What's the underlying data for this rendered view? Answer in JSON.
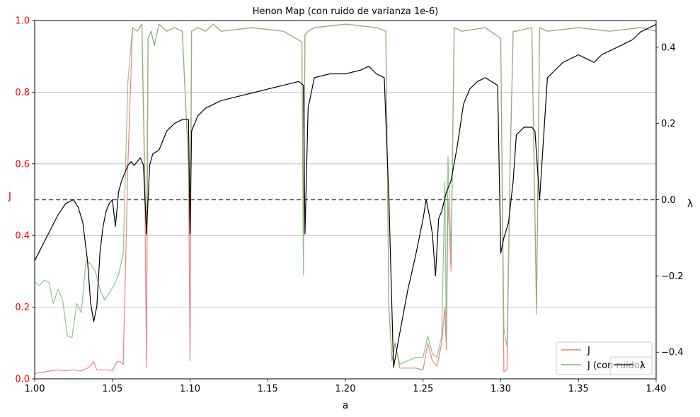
{
  "chart_data": {
    "type": "line",
    "title": "Henon Map (con ruido de varianza 1e-6)",
    "xlabel": "a",
    "ylabel_left": "J",
    "ylabel_right": "λ",
    "xlim": [
      1.0,
      1.4
    ],
    "ylim_left": [
      0.0,
      1.0
    ],
    "ylim_right": [
      -0.47,
      0.47
    ],
    "x_ticks": [
      "1.00",
      "1.05",
      "1.10",
      "1.15",
      "1.20",
      "1.25",
      "1.30",
      "1.35",
      "1.40"
    ],
    "y_ticks_left": [
      "0.0",
      "0.2",
      "0.4",
      "0.6",
      "0.8",
      "1.0"
    ],
    "y_ticks_right": [
      "−0.4",
      "−0.2",
      "0.0",
      "0.2",
      "0.4"
    ],
    "grid": "horizontal",
    "zero_line_right": 0.0,
    "legend_placement": "bottom-right",
    "colors": {
      "J": "#f08080",
      "J_noise": "#77bb77",
      "lambda": "#000000",
      "left_axis_labels": "#ff0000"
    },
    "series": [
      {
        "name": "J",
        "axis": "left",
        "x": [
          1.0,
          1.005,
          1.01,
          1.015,
          1.02,
          1.025,
          1.03,
          1.035,
          1.038,
          1.04,
          1.045,
          1.05,
          1.053,
          1.055,
          1.057,
          1.06,
          1.063,
          1.066,
          1.069,
          1.071,
          1.072,
          1.073,
          1.075,
          1.077,
          1.08,
          1.085,
          1.09,
          1.095,
          1.099,
          1.1,
          1.101,
          1.105,
          1.11,
          1.115,
          1.12,
          1.14,
          1.16,
          1.172,
          1.173,
          1.174,
          1.176,
          1.18,
          1.2,
          1.22,
          1.226,
          1.228,
          1.23,
          1.232,
          1.235,
          1.24,
          1.245,
          1.25,
          1.253,
          1.256,
          1.259,
          1.262,
          1.264,
          1.265,
          1.266,
          1.268,
          1.27,
          1.275,
          1.29,
          1.3,
          1.302,
          1.304,
          1.306,
          1.308,
          1.31,
          1.32,
          1.323,
          1.325,
          1.33,
          1.35,
          1.37,
          1.39,
          1.4
        ],
        "y": [
          0.015,
          0.018,
          0.022,
          0.025,
          0.022,
          0.025,
          0.022,
          0.032,
          0.048,
          0.025,
          0.025,
          0.023,
          0.048,
          0.048,
          0.04,
          0.6,
          0.98,
          0.97,
          0.99,
          0.5,
          0.03,
          0.95,
          0.97,
          0.93,
          0.99,
          0.97,
          0.98,
          0.97,
          0.6,
          0.05,
          0.97,
          0.98,
          0.97,
          0.99,
          0.97,
          0.98,
          0.97,
          0.94,
          0.4,
          0.96,
          0.97,
          0.98,
          0.99,
          0.98,
          0.97,
          0.2,
          0.05,
          0.1,
          0.03,
          0.03,
          0.03,
          0.025,
          0.1,
          0.05,
          0.035,
          0.1,
          0.2,
          0.08,
          0.5,
          0.3,
          0.98,
          0.97,
          0.98,
          0.95,
          0.02,
          0.025,
          0.6,
          0.97,
          0.97,
          0.98,
          0.2,
          0.98,
          0.97,
          0.98,
          0.97,
          0.98,
          0.97
        ]
      },
      {
        "name": "J (con ruido)",
        "axis": "left",
        "x": [
          1.0,
          1.003,
          1.006,
          1.009,
          1.012,
          1.015,
          1.018,
          1.021,
          1.024,
          1.027,
          1.03,
          1.033,
          1.036,
          1.039,
          1.042,
          1.045,
          1.048,
          1.051,
          1.054,
          1.057,
          1.06,
          1.063,
          1.066,
          1.069,
          1.071,
          1.072,
          1.073,
          1.075,
          1.077,
          1.08,
          1.085,
          1.09,
          1.095,
          1.099,
          1.1,
          1.101,
          1.105,
          1.11,
          1.115,
          1.12,
          1.14,
          1.16,
          1.172,
          1.173,
          1.174,
          1.176,
          1.18,
          1.2,
          1.22,
          1.226,
          1.228,
          1.23,
          1.232,
          1.235,
          1.24,
          1.245,
          1.25,
          1.253,
          1.256,
          1.259,
          1.262,
          1.264,
          1.265,
          1.266,
          1.268,
          1.27,
          1.275,
          1.29,
          1.3,
          1.302,
          1.304,
          1.306,
          1.308,
          1.31,
          1.32,
          1.323,
          1.325,
          1.33,
          1.35,
          1.37,
          1.39,
          1.4
        ],
        "y": [
          0.27,
          0.26,
          0.275,
          0.27,
          0.21,
          0.25,
          0.22,
          0.12,
          0.115,
          0.21,
          0.185,
          0.33,
          0.32,
          0.3,
          0.25,
          0.22,
          0.24,
          0.26,
          0.29,
          0.35,
          0.83,
          0.98,
          0.97,
          0.99,
          0.55,
          0.4,
          0.95,
          0.97,
          0.93,
          0.99,
          0.97,
          0.98,
          0.97,
          0.6,
          0.42,
          0.97,
          0.98,
          0.97,
          0.99,
          0.97,
          0.98,
          0.97,
          0.94,
          0.29,
          0.96,
          0.97,
          0.98,
          0.99,
          0.98,
          0.97,
          0.2,
          0.05,
          0.1,
          0.04,
          0.05,
          0.06,
          0.06,
          0.12,
          0.07,
          0.06,
          0.12,
          0.55,
          0.1,
          0.62,
          0.35,
          0.98,
          0.97,
          0.98,
          0.95,
          0.14,
          0.09,
          0.6,
          0.97,
          0.97,
          0.98,
          0.18,
          0.98,
          0.97,
          0.98,
          0.97,
          0.98,
          0.97
        ]
      },
      {
        "name": "λ",
        "axis": "right",
        "x": [
          1.0,
          1.005,
          1.01,
          1.015,
          1.02,
          1.025,
          1.028,
          1.031,
          1.034,
          1.036,
          1.038,
          1.04,
          1.042,
          1.044,
          1.046,
          1.048,
          1.05,
          1.052,
          1.054,
          1.056,
          1.058,
          1.06,
          1.062,
          1.064,
          1.066,
          1.068,
          1.07,
          1.072,
          1.074,
          1.076,
          1.08,
          1.085,
          1.09,
          1.095,
          1.099,
          1.1,
          1.101,
          1.105,
          1.11,
          1.12,
          1.13,
          1.14,
          1.15,
          1.16,
          1.17,
          1.173,
          1.174,
          1.176,
          1.18,
          1.19,
          1.2,
          1.21,
          1.215,
          1.22,
          1.225,
          1.228,
          1.231,
          1.235,
          1.24,
          1.245,
          1.25,
          1.252,
          1.254,
          1.256,
          1.258,
          1.26,
          1.262,
          1.265,
          1.268,
          1.272,
          1.276,
          1.28,
          1.285,
          1.29,
          1.298,
          1.3,
          1.302,
          1.305,
          1.308,
          1.31,
          1.315,
          1.32,
          1.322,
          1.325,
          1.33,
          1.34,
          1.35,
          1.355,
          1.36,
          1.365,
          1.37,
          1.375,
          1.38,
          1.385,
          1.39,
          1.395,
          1.4
        ],
        "y": [
          -0.16,
          -0.12,
          -0.08,
          -0.04,
          -0.01,
          0.0,
          -0.02,
          -0.06,
          -0.16,
          -0.27,
          -0.32,
          -0.28,
          -0.14,
          -0.07,
          -0.03,
          -0.01,
          -0.0,
          -0.07,
          0.02,
          0.05,
          0.07,
          0.09,
          0.1,
          0.09,
          0.1,
          0.11,
          0.09,
          -0.09,
          0.09,
          0.12,
          0.13,
          0.18,
          0.2,
          0.21,
          0.21,
          -0.09,
          0.18,
          0.22,
          0.24,
          0.26,
          0.27,
          0.28,
          0.29,
          0.3,
          0.31,
          0.3,
          -0.09,
          0.24,
          0.32,
          0.33,
          0.33,
          0.34,
          0.35,
          0.33,
          0.32,
          0.0,
          -0.44,
          -0.35,
          -0.24,
          -0.15,
          -0.05,
          0.0,
          -0.04,
          -0.09,
          -0.2,
          -0.05,
          -0.03,
          0.02,
          0.05,
          0.14,
          0.25,
          0.29,
          0.31,
          0.32,
          0.3,
          -0.14,
          -0.1,
          -0.06,
          0.05,
          0.17,
          0.19,
          0.19,
          0.18,
          0.0,
          0.32,
          0.36,
          0.38,
          0.37,
          0.36,
          0.38,
          0.39,
          0.4,
          0.41,
          0.42,
          0.44,
          0.45,
          0.46
        ]
      }
    ]
  }
}
